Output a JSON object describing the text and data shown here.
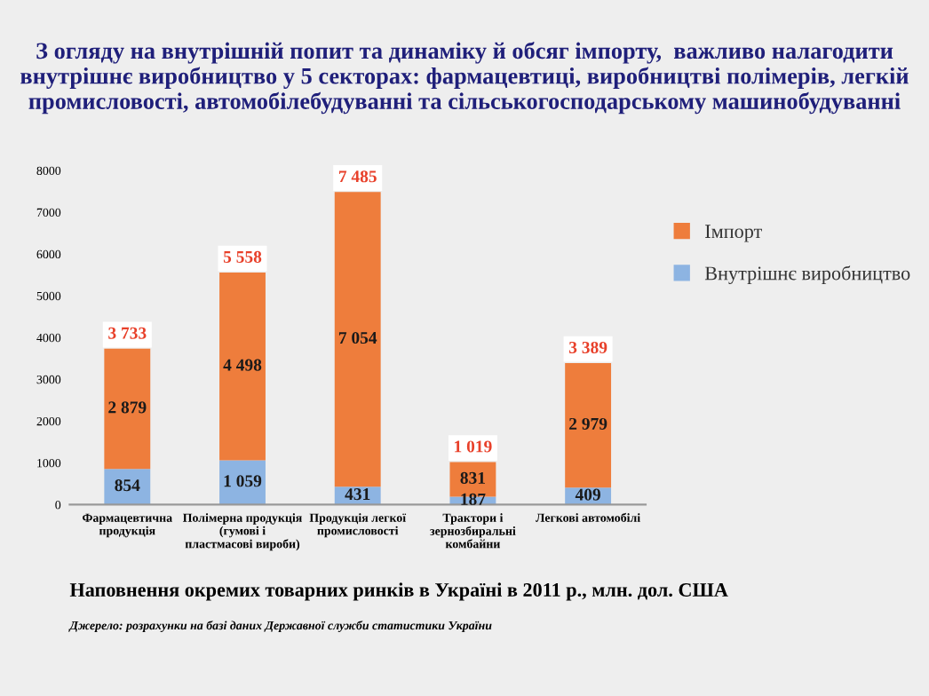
{
  "chart_data": {
    "type": "bar",
    "stacked": true,
    "title": "З огляду на внутрішній попит та динаміку й обсяг імпорту,  важливо налагодити внутрішнє виробництво у 5 секторах: фармацевтиці, виробництві полімерів, легкій промисловості, автомобілебудуванні та сільськогосподарському машинобудуванні",
    "subtitle": "Наповнення окремих товарних ринків в Україні в 2011 р., млн. дол. США",
    "annotations": [
      "Джерело: розрахунки на базі даних Державної служби статистики України"
    ],
    "categories": [
      "Фармацевтична продукція",
      "Полімерна продукція (гумові і пластмасові вироби)",
      "Продукція легкої промисловості",
      "Трактори і зернозбиральні комбайни",
      "Легкові автомобілі"
    ],
    "series": [
      {
        "name": "Внутрішнє виробництво",
        "color": "#8db4e2",
        "values": [
          854,
          1059,
          431,
          187,
          409
        ],
        "value_labels": [
          "854",
          "1 059",
          "431",
          "187",
          "409"
        ]
      },
      {
        "name": "Імпорт",
        "color": "#ee7d3c",
        "values": [
          2879,
          4498,
          7054,
          831,
          2979
        ],
        "value_labels": [
          "2 879",
          "4 498",
          "7 054",
          "831",
          "2 979"
        ]
      }
    ],
    "totals": [
      "3 733",
      "5 558",
      "7 485",
      "1 019",
      "3 389"
    ],
    "ylim": [
      0,
      8000
    ],
    "yticks": [
      0,
      1000,
      2000,
      3000,
      4000,
      5000,
      6000,
      7000,
      8000
    ],
    "grid": false,
    "legend": "right"
  }
}
